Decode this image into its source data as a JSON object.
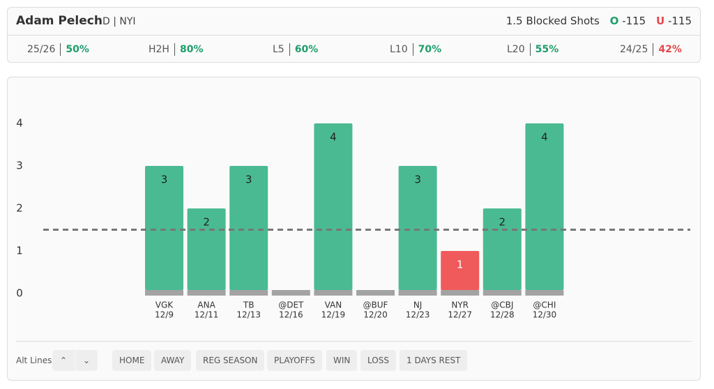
{
  "header": {
    "player": "Adam Pelech",
    "position": "D | NYI",
    "prop": "1.5 Blocked Shots",
    "over_label": "O",
    "over_odds": "-115",
    "under_label": "U",
    "under_odds": "-115"
  },
  "stats": [
    {
      "label": "25/26",
      "value": "50%",
      "color": "#1f9d6c"
    },
    {
      "label": "H2H",
      "value": "80%",
      "color": "#1f9d6c"
    },
    {
      "label": "L5",
      "value": "60%",
      "color": "#1f9d6c"
    },
    {
      "label": "L10",
      "value": "70%",
      "color": "#1f9d6c"
    },
    {
      "label": "L20",
      "value": "55%",
      "color": "#1f9d6c"
    },
    {
      "label": "24/25",
      "value": "42%",
      "color": "#e5484d"
    }
  ],
  "chart_data": {
    "type": "bar",
    "categories": [
      "VGK",
      "ANA",
      "TB",
      "@DET",
      "VAN",
      "@BUF",
      "NJ",
      "NYR",
      "@CBJ",
      "@CHI"
    ],
    "dates": [
      "12/9",
      "12/11",
      "12/13",
      "12/16",
      "12/19",
      "12/20",
      "12/23",
      "12/27",
      "12/28",
      "12/30"
    ],
    "values": [
      3,
      2,
      3,
      0,
      4,
      0,
      3,
      1,
      2,
      4
    ],
    "line": 1.5,
    "over_color": "#4aba93",
    "under_color": "#f05a5a",
    "base_color": "#a3a3a3",
    "ylim": [
      0,
      4
    ],
    "yticks": [
      0,
      1,
      2,
      3,
      4
    ]
  },
  "controls": {
    "alt_lines": "Alt Lines",
    "filters": [
      "HOME",
      "AWAY",
      "REG SEASON",
      "PLAYOFFS",
      "WIN",
      "LOSS",
      "1 DAYS REST"
    ]
  }
}
